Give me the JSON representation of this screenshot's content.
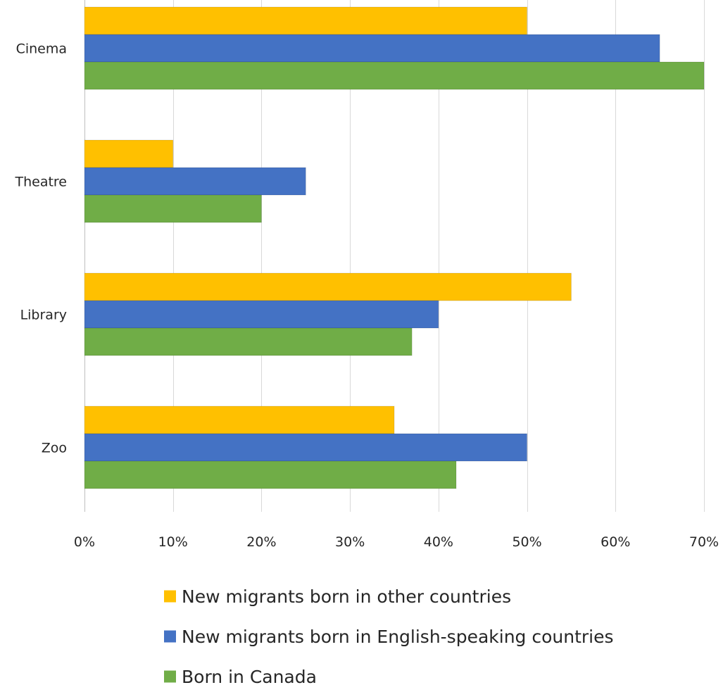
{
  "chart_data": {
    "type": "bar",
    "orientation": "horizontal",
    "title": "",
    "xlabel": "",
    "ylabel": "",
    "categories": [
      "Cinema",
      "Theatre",
      "Library",
      "Zoo"
    ],
    "series": [
      {
        "name": "New migrants born in other countries",
        "color": "#FFC000",
        "values": [
          50,
          10,
          55,
          35
        ]
      },
      {
        "name": "New migrants born in English-speaking countries",
        "color": "#4472C4",
        "values": [
          65,
          25,
          40,
          50
        ]
      },
      {
        "name": "Born in Canada",
        "color": "#70AD47",
        "values": [
          70,
          20,
          37,
          42
        ]
      }
    ],
    "xlim": [
      0,
      70
    ],
    "xticks": [
      "0%",
      "10%",
      "20%",
      "30%",
      "40%",
      "50%",
      "60%",
      "70%"
    ],
    "grid": true,
    "legend_position": "bottom"
  }
}
